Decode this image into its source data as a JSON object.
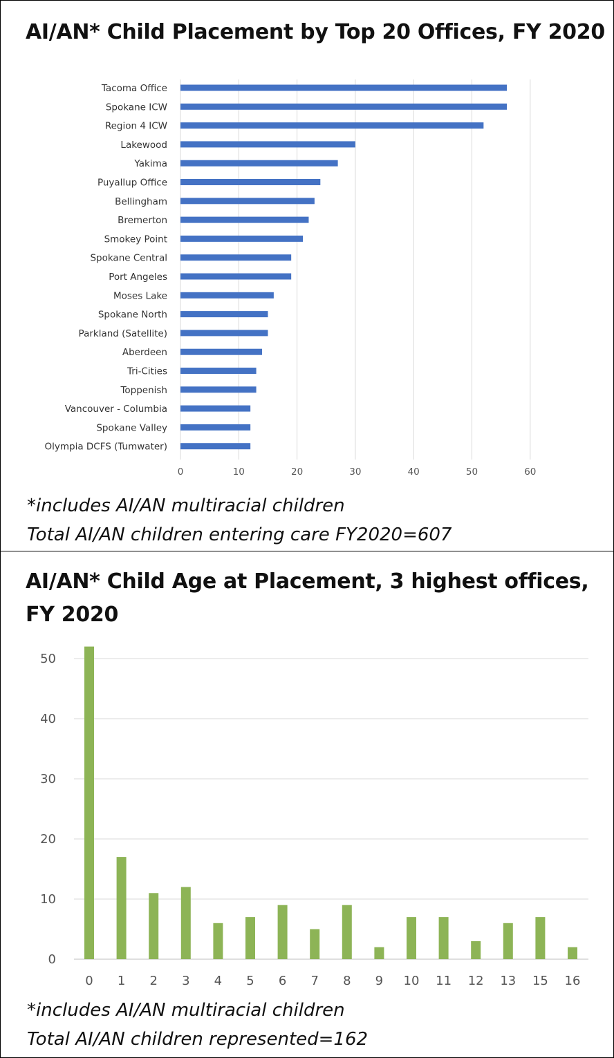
{
  "chart_data": [
    {
      "type": "bar",
      "orientation": "horizontal",
      "title": "AI/AN* Child Placement by Top 20 Offices, FY 2020",
      "categories": [
        "Tacoma Office",
        "Spokane ICW",
        "Region 4 ICW",
        "Lakewood",
        "Yakima",
        "Puyallup Office",
        "Bellingham",
        "Bremerton",
        "Smokey Point",
        "Spokane Central",
        "Port Angeles",
        "Moses Lake",
        "Spokane North",
        "Parkland (Satellite)",
        "Aberdeen",
        "Tri-Cities",
        "Toppenish",
        "Vancouver - Columbia",
        "Spokane Valley",
        "Olympia DCFS (Tumwater)"
      ],
      "values": [
        56,
        56,
        52,
        30,
        27,
        24,
        23,
        22,
        21,
        19,
        19,
        16,
        15,
        15,
        14,
        13,
        13,
        12,
        12,
        12
      ],
      "xlim": [
        0,
        60
      ],
      "xticks": [
        0,
        10,
        20,
        30,
        40,
        50,
        60
      ],
      "grid": true,
      "color": "#4472c4",
      "notes": [
        "*includes AI/AN multiracial children",
        "Total AI/AN children entering care FY2020=607"
      ]
    },
    {
      "type": "bar",
      "title": "AI/AN* Child Age at Placement, 3 highest offices, FY 2020",
      "categories": [
        "0",
        "1",
        "2",
        "3",
        "4",
        "5",
        "6",
        "7",
        "8",
        "9",
        "10",
        "11",
        "12",
        "13",
        "15",
        "16"
      ],
      "values": [
        52,
        17,
        11,
        12,
        6,
        7,
        9,
        5,
        9,
        2,
        7,
        7,
        3,
        6,
        7,
        2
      ],
      "ylim": [
        0,
        50
      ],
      "yticks": [
        0,
        10,
        20,
        30,
        40,
        50
      ],
      "grid": true,
      "color": "#8db456",
      "notes": [
        "*includes AI/AN multiracial children",
        "Total AI/AN children represented=162"
      ]
    }
  ]
}
